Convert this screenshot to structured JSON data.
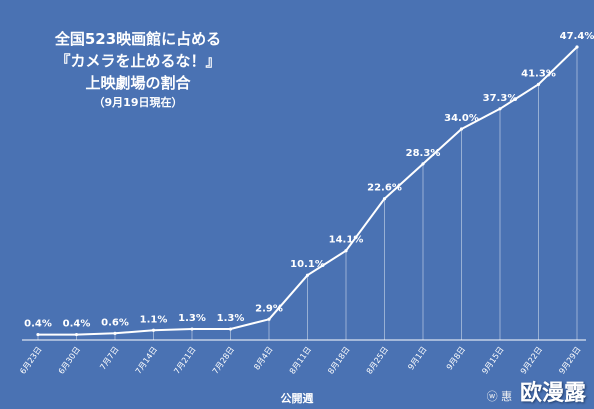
{
  "title": {
    "line1": "全国523映画館に占める",
    "line2": "『カメラを止めるな！』",
    "line3": "上映劇場の割合",
    "line4": "（9月19日現在）"
  },
  "watermark": {
    "prefix": "ⓦ 惠",
    "brand": "欧漫露"
  },
  "chart_data": {
    "type": "line",
    "xlabel": "公開週",
    "ylabel": "",
    "ylim": [
      0,
      50
    ],
    "grid": false,
    "categories": [
      "6月23日",
      "6月30日",
      "7月7日",
      "7月14日",
      "7月21日",
      "7月28日",
      "8月4日",
      "8月11日",
      "8月18日",
      "8月25日",
      "9月1日",
      "9月8日",
      "9月15日",
      "9月22日",
      "9月29日"
    ],
    "values": [
      0.4,
      0.4,
      0.6,
      1.1,
      1.3,
      1.3,
      2.9,
      10.1,
      14.1,
      22.6,
      28.3,
      34.0,
      37.3,
      41.3,
      47.4
    ],
    "data_labels": [
      "0.4%",
      "0.4%",
      "0.6%",
      "1.1%",
      "1.3%",
      "1.3%",
      "2.9%",
      "10.1%",
      "14.1%",
      "22.6%",
      "28.3%",
      "34.0%",
      "37.3%",
      "41.3%",
      "47.4%"
    ]
  },
  "colors": {
    "background": "#4a72b3",
    "line": "#ffffff",
    "text": "#ffffff"
  }
}
